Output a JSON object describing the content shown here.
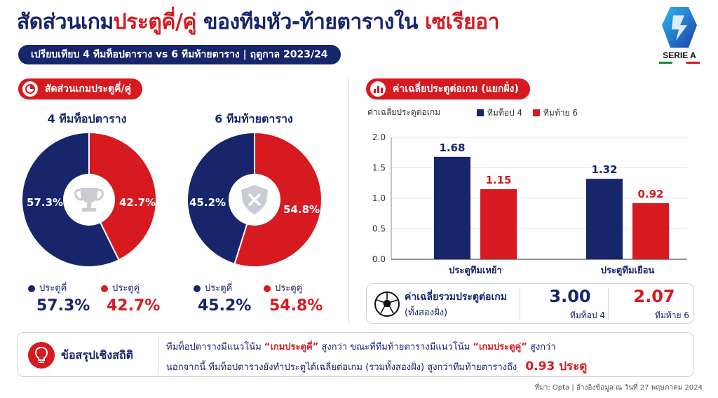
{
  "header": {
    "title_part1": "สัดส่วนเกม",
    "title_part2": "ประตูคี่/คู่",
    "title_part3": " ของทีมหัว-ท้ายตารางใน ",
    "title_part4": "เซเรียอา",
    "subtitle": "เปรียบเทียบ 4 ทีมท็อปตาราง vs 6 ทีมท้ายตาราง | ฤดูกาล 2023/24",
    "logo_text": "SERIE A"
  },
  "left_section": {
    "pill_label": "สัดส่วนเกมประตูคี่/คู่",
    "donuts": [
      {
        "title": "4 ทีมท็อปตาราง",
        "odd_label": "57.3%",
        "even_label": "42.7%",
        "legend_odd": "ประตูคี่",
        "legend_even": "ประตูคู่",
        "odd_value_text": "57.3%",
        "even_value_text": "42.7%",
        "center_icon": "trophy-icon"
      },
      {
        "title": "6 ทีมท้ายตาราง",
        "odd_label": "45.2%",
        "even_label": "54.8%",
        "legend_odd": "ประตูคี่",
        "legend_even": "ประตูคู่",
        "odd_value_text": "45.2%",
        "even_value_text": "54.8%",
        "center_icon": "shield-x-icon"
      }
    ]
  },
  "right_section": {
    "pill_label": "ค่าเฉลี่ยประตูต่อเกม (แยกฝั่ง)",
    "avg_box": {
      "label_line1": "ค่าเฉลี่ยรวมประตูต่อเกม",
      "label_line2": "(ทั้งสองฝั่ง)",
      "top_value": "3.00",
      "top_label": "ทีมท็อป 4",
      "bottom_value": "2.07",
      "bottom_label": "ทีมท้าย 6"
    }
  },
  "summary": {
    "heading": "ข้อสรุปเชิงสถิติ",
    "line1_a": "ทีมท็อปตารางมีแนวโน้ม ",
    "line1_b": "“เกมประตูคี่”",
    "line1_c": " สูงกว่า ขณะที่ทีมท้ายตารางมีแนวโน้ม ",
    "line1_d": "“เกมประตูคู่”",
    "line1_e": " สูงกว่า",
    "line2_a": "นอกจากนี้ ทีมท็อปตารางยังทำประตูได้เฉลี่ยต่อเกม (รวมทั้งสองฝั่ง) สูงกว่าทีมท้ายตารางถึง",
    "line2_b": "0.93 ประตู"
  },
  "source": "ที่มา: Opta | อ้างอิงข้อมูล ณ วันที่ 27 พฤษภาคม 2024",
  "colors": {
    "navy": "#17256b",
    "red": "#d71920"
  },
  "chart_data": [
    {
      "type": "pie",
      "title": "4 ทีมท็อปตาราง",
      "categories": [
        "ประตูคี่",
        "ประตูคู่"
      ],
      "values": [
        57.3,
        42.7
      ]
    },
    {
      "type": "pie",
      "title": "6 ทีมท้ายตาราง",
      "categories": [
        "ประตูคี่",
        "ประตูคู่"
      ],
      "values": [
        45.2,
        54.8
      ]
    },
    {
      "type": "bar",
      "ylabel": "ค่าเฉลี่ยประตูต่อเกม",
      "categories": [
        "ประตูทีมเหย้า",
        "ประตูทีมเยือน"
      ],
      "series": [
        {
          "name": "ทีมท็อป 4",
          "values": [
            1.68,
            1.32
          ],
          "labels": [
            "1.68",
            "1.32"
          ]
        },
        {
          "name": "ทีมท้าย 6",
          "values": [
            1.15,
            0.92
          ],
          "labels": [
            "1.15",
            "0.92"
          ]
        }
      ],
      "ylim": [
        0,
        2.0
      ],
      "yticks": [
        "0.0",
        "0.5",
        "1.0",
        "1.5",
        "2.0"
      ],
      "grid": true,
      "legend": "top"
    }
  ]
}
